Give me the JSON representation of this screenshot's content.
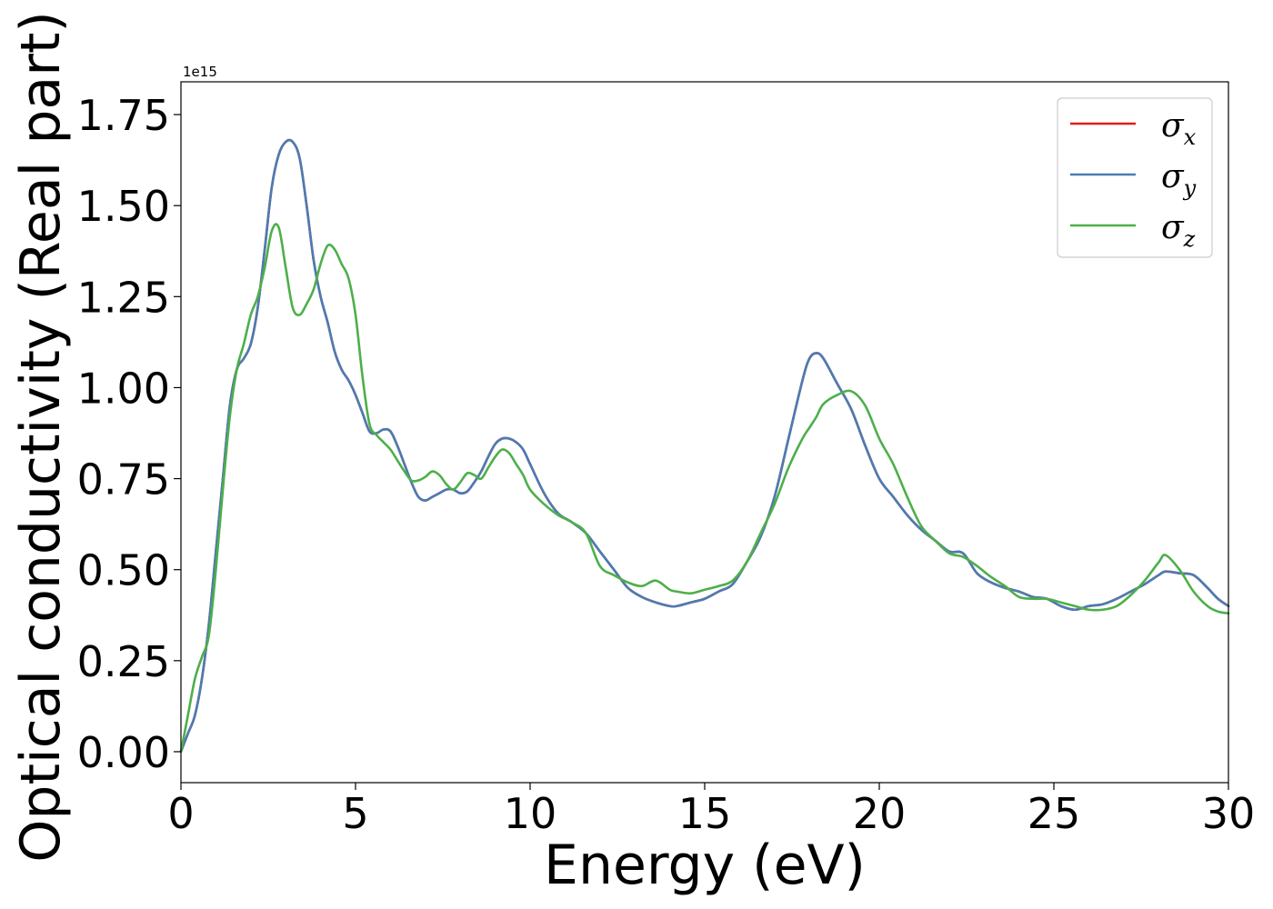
{
  "chart_data": {
    "type": "line",
    "title": "",
    "xlabel": "Energy (eV)",
    "ylabel": "Optical conductivity (Real part)",
    "y_offset_label": "1e15",
    "xlim": [
      0,
      30
    ],
    "ylim": [
      -0.085,
      1.84
    ],
    "x_ticks": [
      0,
      5,
      10,
      15,
      20,
      25,
      30
    ],
    "x_tick_labels": [
      "0",
      "5",
      "10",
      "15",
      "20",
      "25",
      "30"
    ],
    "y_ticks": [
      0.0,
      0.25,
      0.5,
      0.75,
      1.0,
      1.25,
      1.5,
      1.75
    ],
    "y_tick_labels": [
      "0.00",
      "0.25",
      "0.50",
      "0.75",
      "1.00",
      "1.25",
      "1.50",
      "1.75"
    ],
    "grid": false,
    "legend_position": "top-right",
    "series": [
      {
        "name": "σx",
        "legend_base": "σ",
        "legend_sub": "x",
        "color": "#e41a1c",
        "x": [
          0,
          0.2,
          0.4,
          0.6,
          0.8,
          1.0,
          1.2,
          1.4,
          1.6,
          1.8,
          2.0,
          2.2,
          2.4,
          2.6,
          2.8,
          3.0,
          3.2,
          3.4,
          3.6,
          3.8,
          4.0,
          4.2,
          4.4,
          4.6,
          4.8,
          5.0,
          5.2,
          5.4,
          5.6,
          5.8,
          6.0,
          6.2,
          6.4,
          6.6,
          6.8,
          7.0,
          7.2,
          7.4,
          7.6,
          7.8,
          8.0,
          8.2,
          8.4,
          8.6,
          8.8,
          9.0,
          9.2,
          9.4,
          9.6,
          9.8,
          10.0,
          10.4,
          10.8,
          11.2,
          11.6,
          12.0,
          12.4,
          12.8,
          13.2,
          13.6,
          14.0,
          14.2,
          14.6,
          15.0,
          15.4,
          15.8,
          16.2,
          16.6,
          17.0,
          17.4,
          17.8,
          18.0,
          18.2,
          18.4,
          18.8,
          19.2,
          19.6,
          20.0,
          20.4,
          20.8,
          21.2,
          21.6,
          22.0,
          22.4,
          22.8,
          23.2,
          23.6,
          24.0,
          24.4,
          24.8,
          25.2,
          25.6,
          26.0,
          26.4,
          26.8,
          27.2,
          27.6,
          28.0,
          28.2,
          28.6,
          29.0,
          29.4,
          29.7,
          30.0
        ],
        "y": [
          0.0,
          0.05,
          0.1,
          0.2,
          0.35,
          0.55,
          0.75,
          0.95,
          1.05,
          1.08,
          1.12,
          1.22,
          1.38,
          1.55,
          1.64,
          1.675,
          1.675,
          1.63,
          1.5,
          1.35,
          1.25,
          1.18,
          1.1,
          1.05,
          1.02,
          0.98,
          0.93,
          0.88,
          0.875,
          0.885,
          0.88,
          0.84,
          0.79,
          0.74,
          0.7,
          0.69,
          0.7,
          0.71,
          0.72,
          0.72,
          0.71,
          0.715,
          0.74,
          0.77,
          0.81,
          0.845,
          0.86,
          0.86,
          0.85,
          0.83,
          0.79,
          0.71,
          0.655,
          0.63,
          0.6,
          0.55,
          0.5,
          0.45,
          0.425,
          0.41,
          0.4,
          0.4,
          0.41,
          0.42,
          0.44,
          0.46,
          0.52,
          0.59,
          0.7,
          0.86,
          1.02,
          1.08,
          1.095,
          1.08,
          1.01,
          0.94,
          0.84,
          0.75,
          0.7,
          0.65,
          0.61,
          0.58,
          0.55,
          0.545,
          0.49,
          0.465,
          0.45,
          0.44,
          0.425,
          0.42,
          0.4,
          0.39,
          0.4,
          0.405,
          0.42,
          0.44,
          0.46,
          0.485,
          0.495,
          0.49,
          0.485,
          0.45,
          0.42,
          0.4
        ]
      },
      {
        "name": "σy",
        "legend_base": "σ",
        "legend_sub": "y",
        "color": "#4a7cb3",
        "x": [
          0,
          0.2,
          0.4,
          0.6,
          0.8,
          1.0,
          1.2,
          1.4,
          1.6,
          1.8,
          2.0,
          2.2,
          2.4,
          2.6,
          2.8,
          3.0,
          3.2,
          3.4,
          3.6,
          3.8,
          4.0,
          4.2,
          4.4,
          4.6,
          4.8,
          5.0,
          5.2,
          5.4,
          5.6,
          5.8,
          6.0,
          6.2,
          6.4,
          6.6,
          6.8,
          7.0,
          7.2,
          7.4,
          7.6,
          7.8,
          8.0,
          8.2,
          8.4,
          8.6,
          8.8,
          9.0,
          9.2,
          9.4,
          9.6,
          9.8,
          10.0,
          10.4,
          10.8,
          11.2,
          11.6,
          12.0,
          12.4,
          12.8,
          13.2,
          13.6,
          14.0,
          14.2,
          14.6,
          15.0,
          15.4,
          15.8,
          16.2,
          16.6,
          17.0,
          17.4,
          17.8,
          18.0,
          18.2,
          18.4,
          18.8,
          19.2,
          19.6,
          20.0,
          20.4,
          20.8,
          21.2,
          21.6,
          22.0,
          22.4,
          22.8,
          23.2,
          23.6,
          24.0,
          24.4,
          24.8,
          25.2,
          25.6,
          26.0,
          26.4,
          26.8,
          27.2,
          27.6,
          28.0,
          28.2,
          28.6,
          29.0,
          29.4,
          29.7,
          30.0
        ],
        "y": [
          0.0,
          0.05,
          0.1,
          0.2,
          0.35,
          0.55,
          0.75,
          0.95,
          1.05,
          1.08,
          1.12,
          1.22,
          1.38,
          1.55,
          1.64,
          1.675,
          1.675,
          1.63,
          1.5,
          1.35,
          1.25,
          1.18,
          1.1,
          1.05,
          1.02,
          0.98,
          0.93,
          0.88,
          0.875,
          0.885,
          0.88,
          0.84,
          0.79,
          0.74,
          0.7,
          0.69,
          0.7,
          0.71,
          0.72,
          0.72,
          0.71,
          0.715,
          0.74,
          0.77,
          0.81,
          0.845,
          0.86,
          0.86,
          0.85,
          0.83,
          0.79,
          0.71,
          0.655,
          0.63,
          0.6,
          0.55,
          0.5,
          0.45,
          0.425,
          0.41,
          0.4,
          0.4,
          0.41,
          0.42,
          0.44,
          0.46,
          0.52,
          0.59,
          0.7,
          0.86,
          1.02,
          1.08,
          1.095,
          1.08,
          1.01,
          0.94,
          0.84,
          0.75,
          0.7,
          0.65,
          0.61,
          0.58,
          0.55,
          0.545,
          0.49,
          0.465,
          0.45,
          0.44,
          0.425,
          0.42,
          0.4,
          0.39,
          0.4,
          0.405,
          0.42,
          0.44,
          0.46,
          0.485,
          0.495,
          0.49,
          0.485,
          0.45,
          0.42,
          0.4
        ]
      },
      {
        "name": "σz",
        "legend_base": "σ",
        "legend_sub": "z",
        "color": "#4daf4a",
        "x": [
          0,
          0.2,
          0.4,
          0.6,
          0.8,
          1.0,
          1.2,
          1.4,
          1.6,
          1.8,
          2.0,
          2.2,
          2.4,
          2.6,
          2.8,
          3.0,
          3.2,
          3.4,
          3.6,
          3.8,
          4.0,
          4.2,
          4.4,
          4.6,
          4.8,
          5.0,
          5.2,
          5.4,
          5.6,
          5.8,
          6.0,
          6.2,
          6.4,
          6.6,
          6.8,
          7.0,
          7.2,
          7.4,
          7.6,
          7.8,
          8.0,
          8.2,
          8.4,
          8.6,
          8.8,
          9.0,
          9.2,
          9.4,
          9.6,
          9.8,
          10.0,
          10.4,
          10.8,
          11.2,
          11.6,
          12.0,
          12.4,
          12.8,
          13.2,
          13.6,
          14.0,
          14.2,
          14.6,
          15.0,
          15.4,
          15.8,
          16.2,
          16.6,
          17.0,
          17.4,
          17.8,
          18.0,
          18.2,
          18.4,
          18.8,
          19.2,
          19.6,
          20.0,
          20.4,
          20.8,
          21.2,
          21.6,
          22.0,
          22.4,
          22.8,
          23.2,
          23.6,
          24.0,
          24.4,
          24.8,
          25.2,
          25.6,
          26.0,
          26.4,
          26.8,
          27.2,
          27.6,
          28.0,
          28.2,
          28.6,
          29.0,
          29.4,
          29.7,
          30.0
        ],
        "y": [
          0.0,
          0.1,
          0.2,
          0.26,
          0.32,
          0.5,
          0.72,
          0.92,
          1.05,
          1.12,
          1.2,
          1.25,
          1.33,
          1.43,
          1.44,
          1.33,
          1.22,
          1.2,
          1.23,
          1.27,
          1.34,
          1.39,
          1.38,
          1.34,
          1.3,
          1.2,
          1.03,
          0.9,
          0.87,
          0.85,
          0.83,
          0.8,
          0.77,
          0.745,
          0.745,
          0.755,
          0.77,
          0.76,
          0.735,
          0.72,
          0.74,
          0.765,
          0.76,
          0.75,
          0.78,
          0.81,
          0.83,
          0.82,
          0.79,
          0.76,
          0.72,
          0.68,
          0.65,
          0.63,
          0.6,
          0.51,
          0.485,
          0.465,
          0.455,
          0.47,
          0.445,
          0.44,
          0.435,
          0.445,
          0.455,
          0.47,
          0.52,
          0.6,
          0.68,
          0.78,
          0.86,
          0.89,
          0.92,
          0.955,
          0.98,
          0.99,
          0.95,
          0.86,
          0.79,
          0.7,
          0.62,
          0.58,
          0.545,
          0.535,
          0.51,
          0.48,
          0.455,
          0.425,
          0.42,
          0.42,
          0.41,
          0.4,
          0.39,
          0.39,
          0.4,
          0.43,
          0.47,
          0.52,
          0.54,
          0.5,
          0.44,
          0.4,
          0.385,
          0.38
        ]
      }
    ]
  }
}
